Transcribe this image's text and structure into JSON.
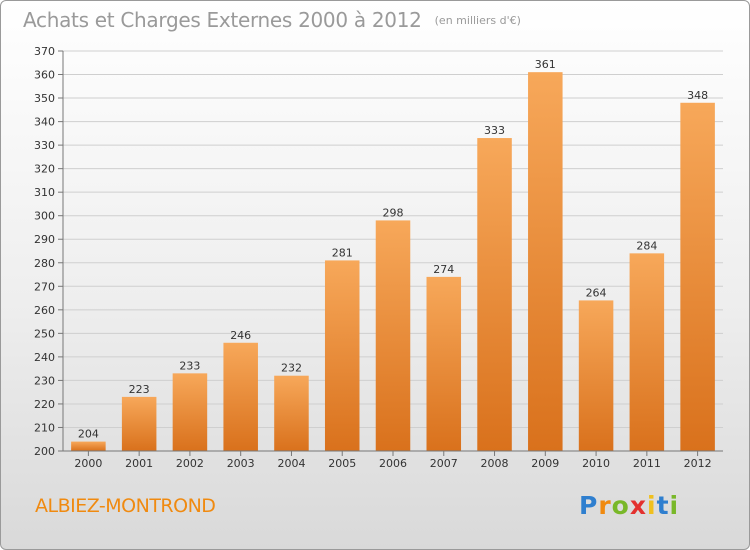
{
  "chart_data": {
    "type": "bar",
    "title": "Achats et Charges Externes 2000 à 2012",
    "unit_note": "(en milliers d'€)",
    "categories": [
      "2000",
      "2001",
      "2002",
      "2003",
      "2004",
      "2005",
      "2006",
      "2007",
      "2008",
      "2009",
      "2010",
      "2011",
      "2012"
    ],
    "values": [
      204,
      223,
      233,
      246,
      232,
      281,
      298,
      274,
      333,
      361,
      264,
      284,
      348
    ],
    "ylim": [
      200,
      370
    ],
    "yticks": [
      200,
      210,
      220,
      230,
      240,
      250,
      260,
      270,
      280,
      290,
      300,
      310,
      320,
      330,
      340,
      350,
      360,
      370
    ],
    "grid": true,
    "bar_colors": {
      "light": "#f7a85a",
      "dark": "#d9711c"
    }
  },
  "commune": "ALBIEZ-MONTROND",
  "logo": {
    "letters": [
      "P",
      "r",
      "o",
      "x",
      "i",
      "t",
      "i"
    ],
    "colors": [
      "#2f7fcf",
      "#f08a10",
      "#79b829",
      "#e3312f",
      "#f0c01e",
      "#2f7fcf",
      "#79b829"
    ]
  }
}
